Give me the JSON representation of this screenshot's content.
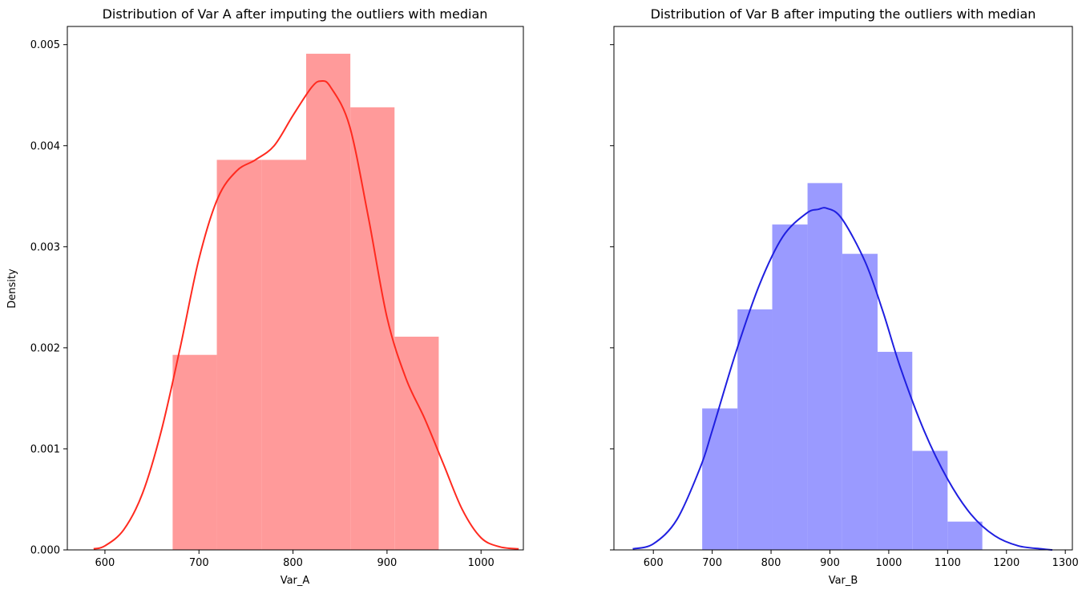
{
  "chart_data": [
    {
      "type": "bar",
      "title": "Distribution of Var A after imputing the outliers with median",
      "xlabel": "Var_A",
      "ylabel": "Density",
      "xlim": [
        560,
        1045
      ],
      "ylim": [
        0,
        0.00518
      ],
      "xticks": [
        600,
        700,
        800,
        900,
        1000
      ],
      "yticks": [
        0.0,
        0.001,
        0.002,
        0.003,
        0.004,
        0.005
      ],
      "ytick_labels": [
        "0.000",
        "0.001",
        "0.002",
        "0.003",
        "0.004",
        "0.005"
      ],
      "grid": false,
      "colors": {
        "bars": "#ff9a9a",
        "kde": "#ff2a1f"
      },
      "histogram": {
        "bin_edges": [
          672,
          719,
          767,
          814,
          861,
          908,
          955
        ],
        "density": [
          0.00193,
          0.00386,
          0.00386,
          0.00491,
          0.00438,
          0.00211
        ]
      },
      "kde": {
        "x": [
          588,
          600,
          620,
          640,
          660,
          680,
          700,
          720,
          740,
          760,
          780,
          800,
          820,
          830,
          840,
          860,
          880,
          900,
          920,
          940,
          960,
          980,
          1000,
          1020,
          1040
        ],
        "y": [
          1e-05,
          4e-05,
          0.0002,
          0.00056,
          0.00118,
          0.002,
          0.00288,
          0.00348,
          0.00375,
          0.00386,
          0.004,
          0.0043,
          0.00458,
          0.00464,
          0.00458,
          0.0042,
          0.0033,
          0.0023,
          0.0017,
          0.0013,
          0.00085,
          0.0004,
          0.00012,
          3e-05,
          1e-05
        ]
      }
    },
    {
      "type": "bar",
      "title": "Distribution of Var B after imputing the outliers with median",
      "xlabel": "Var_B",
      "ylabel": "",
      "xlim": [
        533,
        1312
      ],
      "ylim": [
        0,
        0.00518
      ],
      "xticks": [
        600,
        700,
        800,
        900,
        1000,
        1100,
        1200,
        1300
      ],
      "yticks": [
        0.0,
        0.001,
        0.002,
        0.003,
        0.004,
        0.005
      ],
      "grid": false,
      "colors": {
        "bars": "#9a9aff",
        "kde": "#1f1fe0"
      },
      "histogram": {
        "bin_edges": [
          683,
          743,
          802,
          862,
          921,
          981,
          1040,
          1100,
          1159
        ],
        "density": [
          0.0014,
          0.00238,
          0.00322,
          0.00363,
          0.00293,
          0.00196,
          0.00098,
          0.00028
        ]
      },
      "kde": {
        "x": [
          565,
          600,
          640,
          680,
          700,
          740,
          780,
          820,
          860,
          880,
          895,
          920,
          960,
          990,
          1020,
          1060,
          1100,
          1140,
          1180,
          1220,
          1260,
          1278
        ],
        "y": [
          1e-05,
          6e-05,
          0.0003,
          0.00082,
          0.00118,
          0.00195,
          0.00262,
          0.0031,
          0.00333,
          0.00337,
          0.00338,
          0.00328,
          0.00285,
          0.00236,
          0.0018,
          0.00118,
          0.0007,
          0.00035,
          0.00014,
          4e-05,
          1e-05,
          0.0
        ]
      }
    }
  ]
}
